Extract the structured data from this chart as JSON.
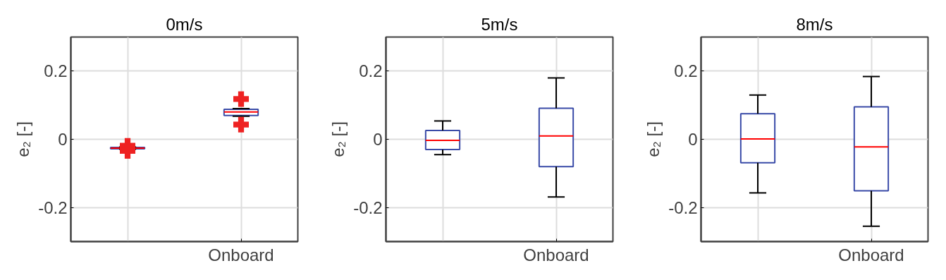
{
  "chart_data": [
    {
      "type": "box",
      "title": "0m/s",
      "ylabel": "e₂ [-]",
      "categories": [
        null,
        "Onboard"
      ],
      "ylim": [
        -0.3,
        0.3
      ],
      "yticks": [
        -0.2,
        0,
        0.2
      ],
      "grid": true,
      "marker": "cross",
      "boxes": [
        {
          "low": -0.029,
          "q1": -0.028,
          "median": -0.026,
          "q3": -0.024,
          "high": -0.023,
          "outliers": [
            -0.019,
            -0.034
          ]
        },
        {
          "low": 0.068,
          "q1": 0.07,
          "median": 0.08,
          "q3": 0.088,
          "high": 0.09,
          "outliers": [
            0.118,
            0.043
          ]
        }
      ]
    },
    {
      "type": "box",
      "title": "5m/s",
      "ylabel": "e₂ [-]",
      "categories": [
        null,
        "Onboard"
      ],
      "ylim": [
        -0.3,
        0.3
      ],
      "yticks": [
        -0.2,
        0,
        0.2
      ],
      "grid": true,
      "boxes": [
        {
          "low": -0.045,
          "q1": -0.03,
          "median": -0.003,
          "q3": 0.026,
          "high": 0.054
        },
        {
          "low": -0.169,
          "q1": -0.08,
          "median": 0.01,
          "q3": 0.091,
          "high": 0.18
        }
      ]
    },
    {
      "type": "box",
      "title": "8m/s",
      "ylabel": "e₂ [-]",
      "categories": [
        null,
        "Onboard"
      ],
      "ylim": [
        -0.3,
        0.3
      ],
      "yticks": [
        -0.2,
        0,
        0.2
      ],
      "grid": true,
      "boxes": [
        {
          "low": -0.157,
          "q1": -0.069,
          "median": 0.001,
          "q3": 0.075,
          "high": 0.13
        },
        {
          "low": -0.255,
          "q1": -0.151,
          "median": -0.022,
          "q3": 0.095,
          "high": 0.184
        }
      ]
    }
  ]
}
